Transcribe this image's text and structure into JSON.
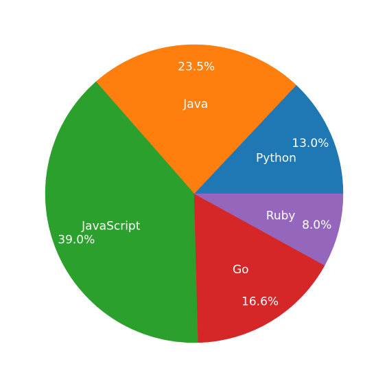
{
  "chart_data": {
    "type": "pie",
    "categories": [
      "Python",
      "Java",
      "JavaScript",
      "Go",
      "Ruby"
    ],
    "values": [
      13.0,
      23.5,
      39.0,
      16.6,
      8.0
    ],
    "percent_labels": [
      "13.0%",
      "23.5%",
      "39.0%",
      "16.6%",
      "8.0%"
    ],
    "colors": [
      "#1f77b4",
      "#ff7f0e",
      "#2ca02c",
      "#d62728",
      "#9467bd"
    ],
    "start_angle_deg": 0,
    "direction": "counterclockwise",
    "legend": "none"
  }
}
